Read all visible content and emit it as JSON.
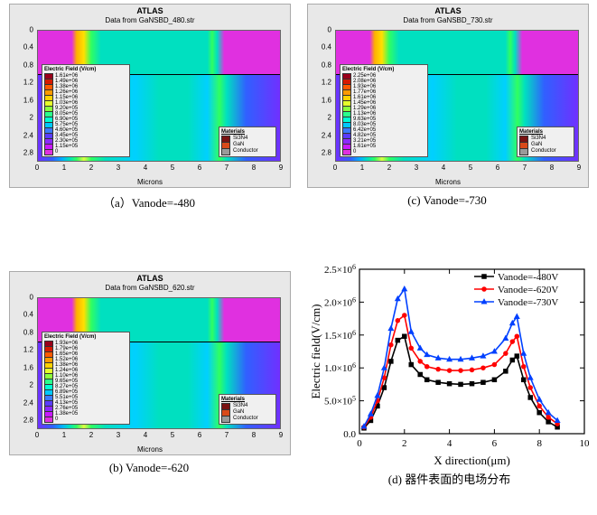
{
  "atlas_common": {
    "title": "ATLAS",
    "x_label": "Microns",
    "y_ticks": [
      0.0,
      0.4,
      0.8,
      1.2,
      1.6,
      2.0,
      2.4,
      2.8
    ],
    "x_ticks": [
      0,
      1,
      2,
      3,
      4,
      5,
      6,
      7,
      8,
      9
    ],
    "ylim": [
      0.0,
      3.0
    ],
    "xlim": [
      0,
      9
    ],
    "field_legend_title": "Electric Field (V/cm)",
    "materials_title": "Materials",
    "materials": [
      {
        "label": "Si3N4",
        "color": "#7a1212"
      },
      {
        "label": "GaN",
        "color": "#d94a1a"
      },
      {
        "label": "Conductor",
        "color": "#9a9a9a"
      }
    ]
  },
  "panels": {
    "a": {
      "subtitle": "Data from GaNSBD_480.str",
      "caption": "（a）Vanode=-480",
      "field_legend": [
        {
          "v": "1.61e+06",
          "c": "#9a001a"
        },
        {
          "v": "1.49e+06",
          "c": "#d61a00"
        },
        {
          "v": "1.38e+06",
          "c": "#ff5a00"
        },
        {
          "v": "1.26e+06",
          "c": "#ff9a00"
        },
        {
          "v": "1.15e+06",
          "c": "#ffd200"
        },
        {
          "v": "1.03e+06",
          "c": "#e6ff2a"
        },
        {
          "v": "9.20e+05",
          "c": "#8cff3c"
        },
        {
          "v": "8.05e+05",
          "c": "#2aff8c"
        },
        {
          "v": "6.90e+05",
          "c": "#00ffd2"
        },
        {
          "v": "5.75e+05",
          "c": "#00c8ff"
        },
        {
          "v": "4.60e+05",
          "c": "#3c7aff"
        },
        {
          "v": "3.45e+05",
          "c": "#5a3cff"
        },
        {
          "v": "2.30e+05",
          "c": "#8c2aff"
        },
        {
          "v": "1.15e+05",
          "c": "#c81aff"
        },
        {
          "v": "0",
          "c": "#e030e0"
        }
      ]
    },
    "b": {
      "subtitle": "Data from GaNSBD_620.str",
      "caption": "(b) Vanode=-620",
      "field_legend": [
        {
          "v": "1.93e+06",
          "c": "#9a001a"
        },
        {
          "v": "1.79e+06",
          "c": "#d61a00"
        },
        {
          "v": "1.65e+06",
          "c": "#ff5a00"
        },
        {
          "v": "1.52e+06",
          "c": "#ff9a00"
        },
        {
          "v": "1.38e+06",
          "c": "#ffd200"
        },
        {
          "v": "1.24e+06",
          "c": "#e6ff2a"
        },
        {
          "v": "1.10e+06",
          "c": "#8cff3c"
        },
        {
          "v": "9.65e+05",
          "c": "#2aff8c"
        },
        {
          "v": "8.27e+05",
          "c": "#00ffd2"
        },
        {
          "v": "6.89e+05",
          "c": "#00c8ff"
        },
        {
          "v": "5.51e+05",
          "c": "#3c7aff"
        },
        {
          "v": "4.13e+05",
          "c": "#5a3cff"
        },
        {
          "v": "2.76e+05",
          "c": "#8c2aff"
        },
        {
          "v": "1.38e+05",
          "c": "#c81aff"
        },
        {
          "v": "0",
          "c": "#e030e0"
        }
      ]
    },
    "c": {
      "subtitle": "Data from GaNSBD_730.str",
      "caption": "(c)   Vanode=-730",
      "field_legend": [
        {
          "v": "2.25e+06",
          "c": "#9a001a"
        },
        {
          "v": "2.08e+06",
          "c": "#d61a00"
        },
        {
          "v": "1.93e+06",
          "c": "#ff5a00"
        },
        {
          "v": "1.77e+06",
          "c": "#ff9a00"
        },
        {
          "v": "1.61e+06",
          "c": "#ffd200"
        },
        {
          "v": "1.45e+06",
          "c": "#e6ff2a"
        },
        {
          "v": "1.29e+06",
          "c": "#8cff3c"
        },
        {
          "v": "1.13e+06",
          "c": "#2aff8c"
        },
        {
          "v": "9.63e+05",
          "c": "#00ffd2"
        },
        {
          "v": "8.03e+05",
          "c": "#00c8ff"
        },
        {
          "v": "6.42e+05",
          "c": "#3c7aff"
        },
        {
          "v": "4.82e+05",
          "c": "#5a3cff"
        },
        {
          "v": "3.21e+05",
          "c": "#8c2aff"
        },
        {
          "v": "1.61e+05",
          "c": "#c81aff"
        },
        {
          "v": "0",
          "c": "#e030e0"
        }
      ]
    }
  },
  "chart_d": {
    "type": "line",
    "caption": "(d)  器件表面的电场分布",
    "x_label": "X direction(μm)",
    "y_label": "Electric field(V/cm)",
    "xlim": [
      0,
      10
    ],
    "ylim": [
      0,
      2500000.0
    ],
    "x_ticks": [
      0,
      2,
      4,
      6,
      8,
      10
    ],
    "y_ticks": [
      0.0,
      500000.0,
      1000000.0,
      1500000.0,
      2000000.0,
      2500000.0
    ],
    "y_tick_labels": [
      "0.0",
      "5.0x10^5",
      "1.0x10^6",
      "1.5x10^6",
      "2.0x10^6",
      "2.5x10^6"
    ],
    "background_color": "#ffffff",
    "axis_color": "#000000",
    "legend_pos": "top-right",
    "line_width": 1.6,
    "marker_size": 4.5,
    "series": [
      {
        "name": "Vanode=-480V",
        "color": "#000000",
        "marker": "square",
        "x": [
          0.2,
          0.5,
          0.8,
          1.1,
          1.4,
          1.7,
          2.0,
          2.3,
          2.7,
          3.0,
          3.5,
          4.0,
          4.5,
          5.0,
          5.5,
          6.0,
          6.5,
          6.8,
          7.0,
          7.3,
          7.6,
          8.0,
          8.4,
          8.8
        ],
        "y": [
          85000.0,
          200000.0,
          420000.0,
          700000.0,
          1100000.0,
          1420000.0,
          1480000.0,
          1050000.0,
          900000.0,
          820000.0,
          780000.0,
          760000.0,
          750000.0,
          760000.0,
          780000.0,
          820000.0,
          950000.0,
          1120000.0,
          1180000.0,
          820000.0,
          550000.0,
          320000.0,
          180000.0,
          100000.0
        ]
      },
      {
        "name": "Vanode=-620V",
        "color": "#ff0000",
        "marker": "circle",
        "x": [
          0.2,
          0.5,
          0.8,
          1.1,
          1.4,
          1.7,
          2.0,
          2.3,
          2.7,
          3.0,
          3.5,
          4.0,
          4.5,
          5.0,
          5.5,
          6.0,
          6.5,
          6.8,
          7.0,
          7.3,
          7.6,
          8.0,
          8.4,
          8.8
        ],
        "y": [
          100000.0,
          250000.0,
          500000.0,
          850000.0,
          1350000.0,
          1720000.0,
          1800000.0,
          1300000.0,
          1100000.0,
          1020000.0,
          980000.0,
          960000.0,
          960000.0,
          970000.0,
          1000000.0,
          1050000.0,
          1220000.0,
          1400000.0,
          1480000.0,
          1020000.0,
          700000.0,
          420000.0,
          250000.0,
          150000.0
        ]
      },
      {
        "name": "Vanode=-730V",
        "color": "#0040ff",
        "marker": "triangle",
        "x": [
          0.2,
          0.5,
          0.8,
          1.1,
          1.4,
          1.7,
          2.0,
          2.3,
          2.7,
          3.0,
          3.5,
          4.0,
          4.5,
          5.0,
          5.5,
          6.0,
          6.5,
          6.8,
          7.0,
          7.3,
          7.6,
          8.0,
          8.4,
          8.8
        ],
        "y": [
          110000.0,
          300000.0,
          580000.0,
          1000000.0,
          1600000.0,
          2050000.0,
          2200000.0,
          1550000.0,
          1300000.0,
          1200000.0,
          1150000.0,
          1130000.0,
          1130000.0,
          1150000.0,
          1180000.0,
          1250000.0,
          1450000.0,
          1680000.0,
          1780000.0,
          1220000.0,
          850000.0,
          520000.0,
          320000.0,
          200000.0
        ]
      }
    ]
  }
}
